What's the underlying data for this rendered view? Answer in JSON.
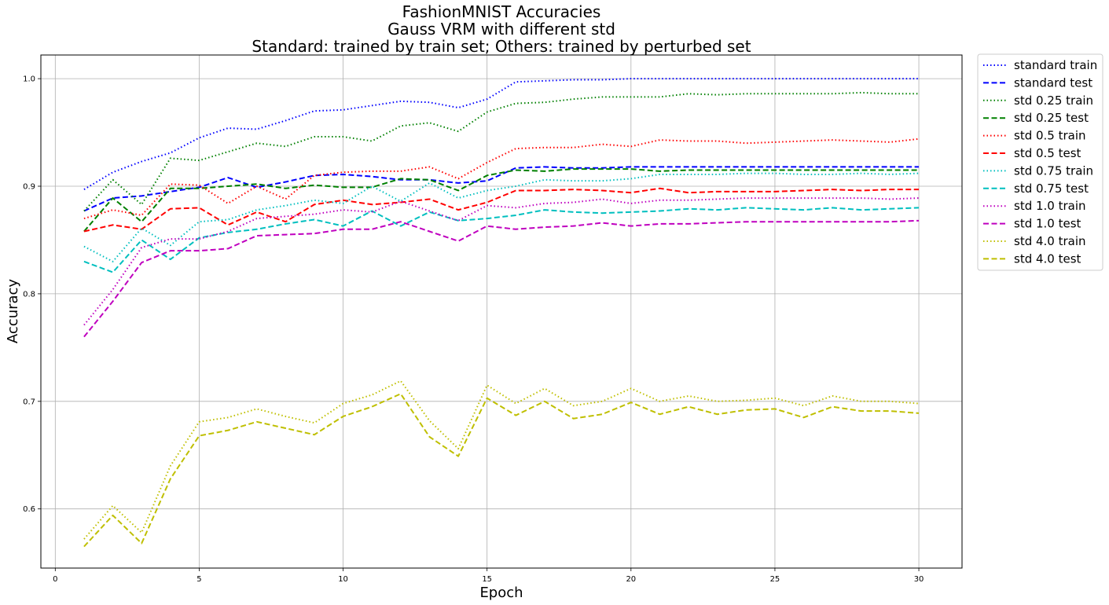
{
  "chart_data": {
    "type": "line",
    "title_lines": [
      "FashionMNIST Accuracies",
      "Gauss VRM with different std",
      "Standard: trained by train set; Others: trained by perturbed set"
    ],
    "xlabel": "Epoch",
    "ylabel": "Accuracy",
    "xlim": [
      -0.5,
      31.5
    ],
    "ylim": [
      0.545,
      1.022
    ],
    "xticks": [
      0,
      5,
      10,
      15,
      20,
      25,
      30
    ],
    "yticks": [
      0.6,
      0.7,
      0.8,
      0.9,
      1.0
    ],
    "xtick_labels": [
      "0",
      "5",
      "10",
      "15",
      "20",
      "25",
      "30"
    ],
    "ytick_labels": [
      "0.6",
      "0.7",
      "0.8",
      "0.9",
      "1.0"
    ],
    "grid": true,
    "legend_position": "outside-right-top",
    "x": [
      1,
      2,
      3,
      4,
      5,
      6,
      7,
      8,
      9,
      10,
      11,
      12,
      13,
      14,
      15,
      16,
      17,
      18,
      19,
      20,
      21,
      22,
      23,
      24,
      25,
      26,
      27,
      28,
      29,
      30
    ],
    "series": [
      {
        "name": "standard train",
        "color": "#0000ff",
        "dash": "dotted",
        "values": [
          0.897,
          0.913,
          0.923,
          0.931,
          0.945,
          0.954,
          0.953,
          0.961,
          0.97,
          0.971,
          0.975,
          0.979,
          0.978,
          0.973,
          0.981,
          0.997,
          0.998,
          0.999,
          0.999,
          1.0,
          1.0,
          1.0,
          1.0,
          1.0,
          1.0,
          1.0,
          1.0,
          1.0,
          1.0,
          1.0
        ]
      },
      {
        "name": "standard test",
        "color": "#0000ff",
        "dash": "dashed",
        "values": [
          0.877,
          0.889,
          0.891,
          0.895,
          0.899,
          0.908,
          0.899,
          0.904,
          0.91,
          0.911,
          0.909,
          0.906,
          0.906,
          0.903,
          0.905,
          0.917,
          0.918,
          0.917,
          0.917,
          0.918,
          0.918,
          0.918,
          0.918,
          0.918,
          0.918,
          0.918,
          0.918,
          0.918,
          0.918,
          0.918
        ]
      },
      {
        "name": "std 0.25 train",
        "color": "#008000",
        "dash": "dotted",
        "values": [
          0.877,
          0.906,
          0.883,
          0.926,
          0.924,
          0.932,
          0.94,
          0.937,
          0.946,
          0.946,
          0.942,
          0.956,
          0.959,
          0.951,
          0.969,
          0.977,
          0.978,
          0.981,
          0.983,
          0.983,
          0.983,
          0.986,
          0.985,
          0.986,
          0.986,
          0.986,
          0.986,
          0.987,
          0.986,
          0.986
        ]
      },
      {
        "name": "std 0.25 test",
        "color": "#008000",
        "dash": "dashed",
        "values": [
          0.858,
          0.889,
          0.867,
          0.898,
          0.898,
          0.9,
          0.902,
          0.898,
          0.901,
          0.899,
          0.899,
          0.907,
          0.906,
          0.896,
          0.91,
          0.915,
          0.914,
          0.916,
          0.916,
          0.916,
          0.914,
          0.915,
          0.915,
          0.915,
          0.915,
          0.915,
          0.915,
          0.915,
          0.915,
          0.915
        ]
      },
      {
        "name": "std 0.5 train",
        "color": "#ff0000",
        "dash": "dotted",
        "values": [
          0.87,
          0.878,
          0.873,
          0.902,
          0.901,
          0.884,
          0.9,
          0.888,
          0.91,
          0.913,
          0.914,
          0.914,
          0.918,
          0.907,
          0.922,
          0.935,
          0.936,
          0.936,
          0.939,
          0.937,
          0.943,
          0.942,
          0.942,
          0.94,
          0.941,
          0.942,
          0.943,
          0.942,
          0.941,
          0.944
        ]
      },
      {
        "name": "std 0.5 test",
        "color": "#ff0000",
        "dash": "dashed",
        "values": [
          0.858,
          0.864,
          0.86,
          0.879,
          0.88,
          0.864,
          0.876,
          0.867,
          0.883,
          0.887,
          0.883,
          0.885,
          0.888,
          0.878,
          0.885,
          0.896,
          0.896,
          0.897,
          0.896,
          0.894,
          0.898,
          0.894,
          0.895,
          0.895,
          0.895,
          0.896,
          0.897,
          0.896,
          0.897,
          0.897
        ]
      },
      {
        "name": "std 0.75 train",
        "color": "#00bfbf",
        "dash": "dotted",
        "values": [
          0.844,
          0.83,
          0.861,
          0.845,
          0.867,
          0.869,
          0.878,
          0.882,
          0.887,
          0.884,
          0.9,
          0.886,
          0.903,
          0.889,
          0.896,
          0.9,
          0.906,
          0.905,
          0.905,
          0.907,
          0.911,
          0.911,
          0.911,
          0.912,
          0.912,
          0.911,
          0.911,
          0.912,
          0.911,
          0.912
        ]
      },
      {
        "name": "std 0.75 test",
        "color": "#00bfbf",
        "dash": "dashed",
        "values": [
          0.83,
          0.82,
          0.85,
          0.832,
          0.852,
          0.857,
          0.86,
          0.865,
          0.869,
          0.863,
          0.877,
          0.863,
          0.876,
          0.868,
          0.87,
          0.873,
          0.878,
          0.876,
          0.875,
          0.876,
          0.877,
          0.879,
          0.878,
          0.88,
          0.879,
          0.878,
          0.88,
          0.878,
          0.879,
          0.88
        ]
      },
      {
        "name": "std 1.0 train",
        "color": "#bf00bf",
        "dash": "dotted",
        "values": [
          0.771,
          0.804,
          0.843,
          0.851,
          0.851,
          0.858,
          0.87,
          0.872,
          0.874,
          0.878,
          0.876,
          0.886,
          0.877,
          0.868,
          0.882,
          0.88,
          0.884,
          0.885,
          0.888,
          0.884,
          0.887,
          0.887,
          0.888,
          0.889,
          0.889,
          0.889,
          0.889,
          0.889,
          0.888,
          0.889
        ]
      },
      {
        "name": "std 1.0 test",
        "color": "#bf00bf",
        "dash": "dashed",
        "values": [
          0.76,
          0.793,
          0.829,
          0.84,
          0.84,
          0.842,
          0.854,
          0.855,
          0.856,
          0.86,
          0.86,
          0.867,
          0.858,
          0.849,
          0.863,
          0.86,
          0.862,
          0.863,
          0.866,
          0.863,
          0.865,
          0.865,
          0.866,
          0.867,
          0.867,
          0.867,
          0.867,
          0.867,
          0.867,
          0.868
        ]
      },
      {
        "name": "std 4.0 train",
        "color": "#bfbf00",
        "dash": "dotted",
        "values": [
          0.572,
          0.603,
          0.578,
          0.64,
          0.681,
          0.685,
          0.693,
          0.686,
          0.68,
          0.698,
          0.706,
          0.719,
          0.682,
          0.656,
          0.715,
          0.698,
          0.712,
          0.696,
          0.7,
          0.712,
          0.7,
          0.705,
          0.7,
          0.701,
          0.703,
          0.696,
          0.705,
          0.7,
          0.7,
          0.698
        ]
      },
      {
        "name": "std 4.0 test",
        "color": "#bfbf00",
        "dash": "dashed",
        "values": [
          0.565,
          0.594,
          0.568,
          0.628,
          0.668,
          0.673,
          0.681,
          0.675,
          0.669,
          0.686,
          0.695,
          0.707,
          0.667,
          0.649,
          0.703,
          0.687,
          0.7,
          0.684,
          0.688,
          0.699,
          0.688,
          0.695,
          0.688,
          0.692,
          0.693,
          0.685,
          0.695,
          0.691,
          0.691,
          0.689
        ]
      }
    ]
  }
}
